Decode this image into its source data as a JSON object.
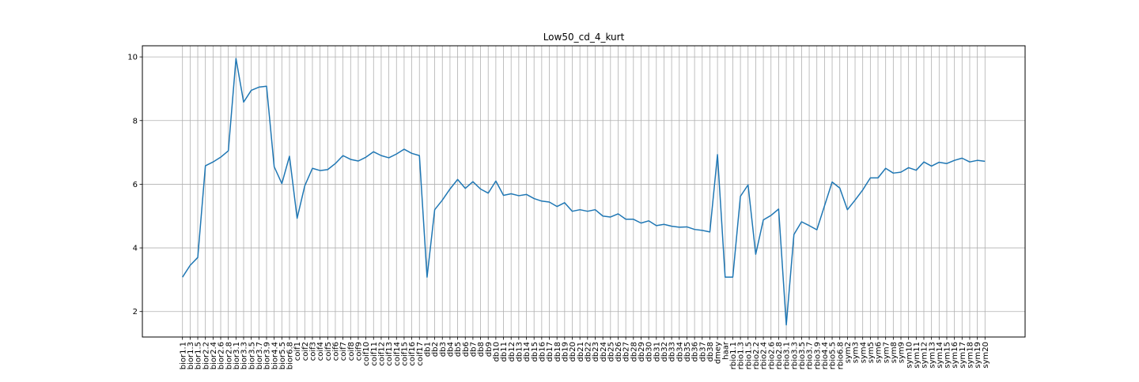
{
  "chart_data": {
    "type": "line",
    "title": "Low50_cd_4_kurt",
    "xlabel": "",
    "ylabel": "",
    "ylim": [
      1.2,
      10.35
    ],
    "yticks": [
      2,
      4,
      6,
      8,
      10
    ],
    "grid": true,
    "line_color": "#1f77b4",
    "categories": [
      "bior1.1",
      "bior1.3",
      "bior1.5",
      "bior2.2",
      "bior2.4",
      "bior2.6",
      "bior2.8",
      "bior3.1",
      "bior3.3",
      "bior3.5",
      "bior3.7",
      "bior3.9",
      "bior4.4",
      "bior5.5",
      "bior6.8",
      "coif1",
      "coif2",
      "coif3",
      "coif4",
      "coif5",
      "coif6",
      "coif7",
      "coif8",
      "coif9",
      "coif10",
      "coif11",
      "coif12",
      "coif13",
      "coif14",
      "coif15",
      "coif16",
      "coif17",
      "db1",
      "db2",
      "db3",
      "db4",
      "db5",
      "db6",
      "db7",
      "db8",
      "db9",
      "db10",
      "db11",
      "db12",
      "db13",
      "db14",
      "db15",
      "db16",
      "db17",
      "db18",
      "db19",
      "db20",
      "db21",
      "db22",
      "db23",
      "db24",
      "db25",
      "db26",
      "db27",
      "db28",
      "db29",
      "db30",
      "db31",
      "db32",
      "db33",
      "db34",
      "db35",
      "db36",
      "db37",
      "db38",
      "dmey",
      "haar",
      "rbio1.1",
      "rbio1.3",
      "rbio1.5",
      "rbio2.2",
      "rbio2.4",
      "rbio2.6",
      "rbio2.8",
      "rbio3.1",
      "rbio3.3",
      "rbio3.5",
      "rbio3.7",
      "rbio3.9",
      "rbio4.4",
      "rbio5.5",
      "rbio6.8",
      "sym2",
      "sym3",
      "sym4",
      "sym5",
      "sym6",
      "sym7",
      "sym8",
      "sym9",
      "sym10",
      "sym11",
      "sym12",
      "sym13",
      "sym14",
      "sym15",
      "sym16",
      "sym17",
      "sym18",
      "sym19",
      "sym20"
    ],
    "values": [
      3.08,
      3.45,
      3.7,
      6.58,
      6.7,
      6.85,
      7.05,
      9.95,
      8.58,
      8.95,
      9.05,
      9.08,
      6.55,
      6.02,
      6.88,
      4.93,
      5.95,
      6.5,
      6.43,
      6.46,
      6.65,
      6.9,
      6.78,
      6.73,
      6.85,
      7.02,
      6.9,
      6.83,
      6.95,
      7.1,
      6.97,
      6.9,
      3.08,
      5.2,
      5.5,
      5.85,
      6.15,
      5.87,
      6.08,
      5.85,
      5.72,
      6.1,
      5.65,
      5.7,
      5.64,
      5.68,
      5.55,
      5.47,
      5.44,
      5.3,
      5.42,
      5.15,
      5.2,
      5.15,
      5.2,
      5.0,
      4.97,
      5.07,
      4.9,
      4.9,
      4.78,
      4.85,
      4.7,
      4.74,
      4.68,
      4.65,
      4.66,
      4.58,
      4.55,
      4.5,
      6.93,
      3.08,
      3.08,
      5.62,
      5.98,
      3.8,
      4.88,
      5.02,
      5.22,
      1.58,
      4.42,
      4.82,
      4.7,
      4.57,
      5.32,
      6.07,
      5.88,
      5.2,
      5.5,
      5.82,
      6.2,
      6.2,
      6.5,
      6.35,
      6.38,
      6.52,
      6.44,
      6.7,
      6.57,
      6.69,
      6.65,
      6.75,
      6.82,
      6.7,
      6.75,
      6.72
    ]
  }
}
